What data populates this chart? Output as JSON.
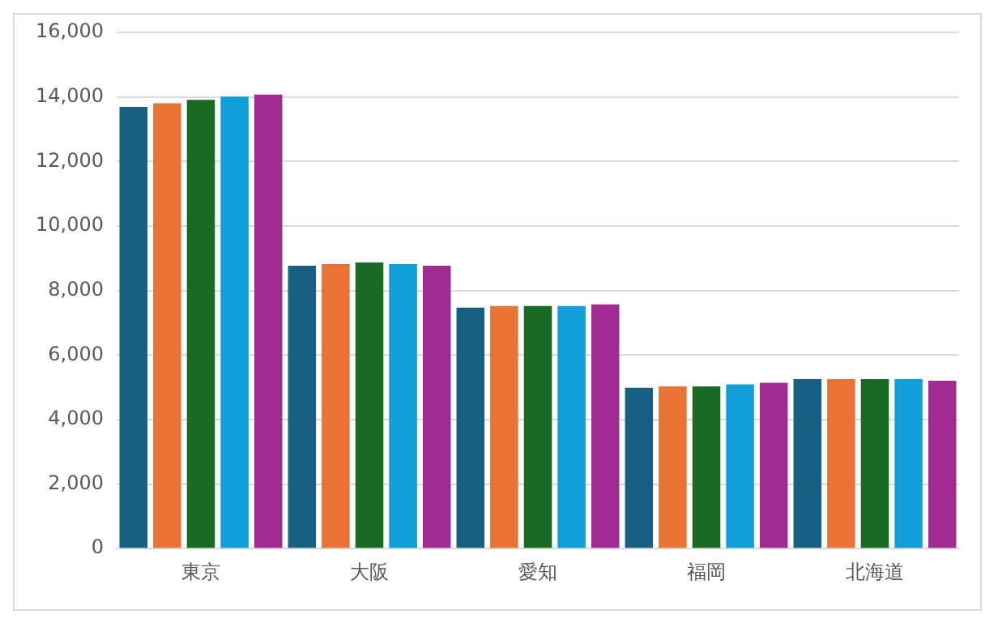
{
  "chart_data": {
    "type": "bar",
    "categories": [
      "東京",
      "大阪",
      "愛知",
      "福岡",
      "北海道"
    ],
    "series": [
      {
        "color": "#175f83",
        "values": [
          13690,
          8770,
          7470,
          4980,
          5250
        ]
      },
      {
        "color": "#e97333",
        "values": [
          13800,
          8820,
          7520,
          5030,
          5250
        ]
      },
      {
        "color": "#1b6a24",
        "values": [
          13910,
          8870,
          7520,
          5030,
          5250
        ]
      },
      {
        "color": "#109fd8",
        "values": [
          14010,
          8820,
          7520,
          5090,
          5250
        ]
      },
      {
        "color": "#a02b93",
        "values": [
          14070,
          8770,
          7570,
          5140,
          5200
        ]
      }
    ],
    "ylim": [
      0,
      16000
    ],
    "yticks": [
      0,
      {
        "value": 2000,
        "label": "2,000"
      },
      {
        "value": 4000,
        "label": "4,000"
      },
      {
        "value": 6000,
        "label": "6,000"
      },
      {
        "value": 8000,
        "label": "8,000"
      },
      {
        "value": 10000,
        "label": "10,000"
      },
      {
        "value": 12000,
        "label": "12,000"
      },
      {
        "value": 14000,
        "label": "14,000"
      },
      {
        "value": 16000,
        "label": "16,000"
      }
    ],
    "grid": "y",
    "legend": false
  }
}
